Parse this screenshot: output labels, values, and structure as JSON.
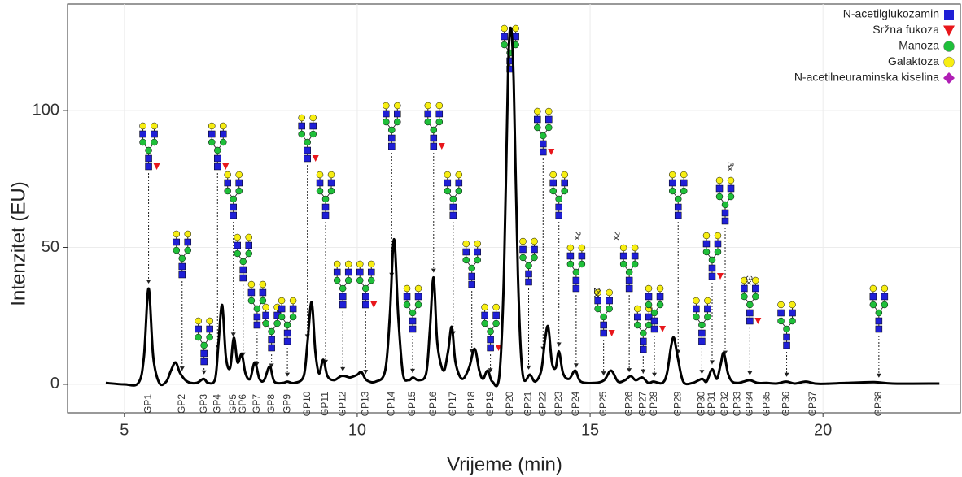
{
  "chart_data": {
    "type": "line",
    "xlabel": "Vrijeme (min)",
    "ylabel": "Intenzitet (EU)",
    "xlim": [
      3.78,
      22.95
    ],
    "ylim": [
      -10.4,
      138.9
    ],
    "xticks": [
      5,
      10,
      15,
      20
    ],
    "yticks": [
      0,
      50,
      100
    ],
    "grid": true,
    "series": [
      {
        "color": "#000000",
        "x": [
          4.6,
          5.0,
          5.3,
          5.42,
          5.52,
          5.62,
          5.75,
          5.9,
          6.0,
          6.1,
          6.2,
          6.35,
          6.55,
          6.7,
          6.8,
          6.95,
          7.02,
          7.1,
          7.18,
          7.27,
          7.35,
          7.43,
          7.52,
          7.6,
          7.7,
          7.8,
          7.9,
          8.0,
          8.12,
          8.22,
          8.4,
          8.5,
          8.65,
          8.85,
          8.93,
          9.02,
          9.1,
          9.18,
          9.27,
          9.36,
          9.5,
          9.65,
          9.74,
          9.85,
          10.0,
          10.09,
          10.2,
          10.4,
          10.6,
          10.7,
          10.79,
          10.88,
          10.98,
          11.1,
          11.2,
          11.32,
          11.48,
          11.56,
          11.64,
          11.72,
          11.85,
          11.95,
          12.03,
          12.11,
          12.25,
          12.4,
          12.52,
          12.62,
          12.7,
          12.8,
          12.9,
          13.05,
          13.15,
          13.24,
          13.3,
          13.36,
          13.45,
          13.55,
          13.71,
          13.82,
          13.95,
          14.03,
          14.1,
          14.18,
          14.26,
          14.33,
          14.42,
          14.55,
          14.68,
          14.8,
          15.1,
          15.3,
          15.45,
          15.6,
          15.75,
          15.87,
          15.98,
          16.12,
          16.25,
          16.36,
          16.55,
          16.65,
          16.74,
          16.8,
          16.88,
          17.0,
          17.2,
          17.4,
          17.5,
          17.62,
          17.72,
          17.8,
          17.87,
          17.96,
          18.05,
          18.17,
          18.3,
          18.43,
          18.6,
          18.79,
          19.0,
          19.21,
          19.4,
          19.63,
          19.9,
          20.5,
          21.1,
          21.5,
          22.5
        ],
        "values": [
          0.5,
          0,
          0.5,
          10,
          35,
          10,
          0.5,
          1,
          5,
          8,
          4,
          1,
          0.5,
          2,
          0.5,
          2,
          15,
          29,
          10,
          6,
          17,
          8,
          11,
          4,
          2,
          8,
          2,
          1.5,
          6.5,
          1,
          0.5,
          1,
          0.5,
          3,
          15,
          30,
          12,
          4,
          9,
          3,
          1.5,
          3,
          3,
          2.5,
          3.5,
          4.5,
          1.5,
          1,
          5,
          25,
          53,
          25,
          4,
          1.5,
          2.5,
          1.5,
          4,
          20,
          39,
          15,
          5,
          12,
          21,
          8,
          2,
          6,
          13,
          5,
          2,
          5,
          1,
          3,
          40,
          115,
          130,
          110,
          40,
          4,
          3.5,
          1,
          5,
          16,
          21,
          8,
          6,
          12,
          4,
          2,
          5,
          1,
          0.5,
          1.5,
          5,
          1,
          1.5,
          3,
          1.5,
          2.5,
          0.5,
          1,
          0.5,
          4,
          14,
          17,
          10,
          1,
          0.5,
          2,
          1,
          5.5,
          2,
          7,
          11.5,
          4,
          1,
          0.5,
          1,
          1.5,
          0.5,
          0.5,
          0.3,
          1,
          0.3,
          1,
          0.2,
          0.5,
          0.8,
          0.3,
          0.3
        ]
      }
    ],
    "peaks": [
      {
        "name": "GP1",
        "x": 5.52
      },
      {
        "name": "GP2",
        "x": 6.24
      },
      {
        "name": "GP3",
        "x": 6.71
      },
      {
        "name": "GP4",
        "x": 7.0
      },
      {
        "name": "GP5",
        "x": 7.34
      },
      {
        "name": "GP6",
        "x": 7.55
      },
      {
        "name": "GP7",
        "x": 7.85
      },
      {
        "name": "GP8",
        "x": 8.16
      },
      {
        "name": "GP9",
        "x": 8.5
      },
      {
        "name": "GP10",
        "x": 8.93
      },
      {
        "name": "GP11",
        "x": 9.32
      },
      {
        "name": "GP12",
        "x": 9.69
      },
      {
        "name": "GP13",
        "x": 10.18
      },
      {
        "name": "GP14",
        "x": 10.74
      },
      {
        "name": "GP15",
        "x": 11.19
      },
      {
        "name": "GP16",
        "x": 11.64
      },
      {
        "name": "GP17",
        "x": 12.06
      },
      {
        "name": "GP18",
        "x": 12.46
      },
      {
        "name": "GP19",
        "x": 12.86
      },
      {
        "name": "GP20",
        "x": 13.28
      },
      {
        "name": "GP21",
        "x": 13.68
      },
      {
        "name": "GP22",
        "x": 13.99
      },
      {
        "name": "GP23",
        "x": 14.33
      },
      {
        "name": "GP24",
        "x": 14.7
      },
      {
        "name": "GP25",
        "x": 15.29
      },
      {
        "name": "GP26",
        "x": 15.84
      },
      {
        "name": "GP27",
        "x": 16.14
      },
      {
        "name": "GP28",
        "x": 16.38
      },
      {
        "name": "GP29",
        "x": 16.89
      },
      {
        "name": "GP30",
        "x": 17.4
      },
      {
        "name": "GP31",
        "x": 17.62
      },
      {
        "name": "GP32",
        "x": 17.9
      },
      {
        "name": "GP33",
        "x": 18.17
      },
      {
        "name": "GP34",
        "x": 18.43
      },
      {
        "name": "GP35",
        "x": 18.8
      },
      {
        "name": "GP36",
        "x": 19.22
      },
      {
        "name": "GP37",
        "x": 19.78
      },
      {
        "name": "GP38",
        "x": 21.2
      }
    ],
    "annotations": [
      "2x",
      "2x",
      "2x",
      "3x",
      "3x"
    ],
    "legend": [
      {
        "name": "N-acetilglukozamin",
        "color": "#1f1fd6",
        "shape": "square"
      },
      {
        "name": "Sržna fukoza",
        "color": "#e8161b",
        "shape": "triangle"
      },
      {
        "name": "Manoza",
        "color": "#1fbf3a",
        "shape": "circle"
      },
      {
        "name": "Galaktoza",
        "color": "#f7ee12",
        "shape": "circle"
      },
      {
        "name": "N-acetilneuraminska kiselina",
        "color": "#b01fb5",
        "shape": "diamond"
      }
    ]
  }
}
